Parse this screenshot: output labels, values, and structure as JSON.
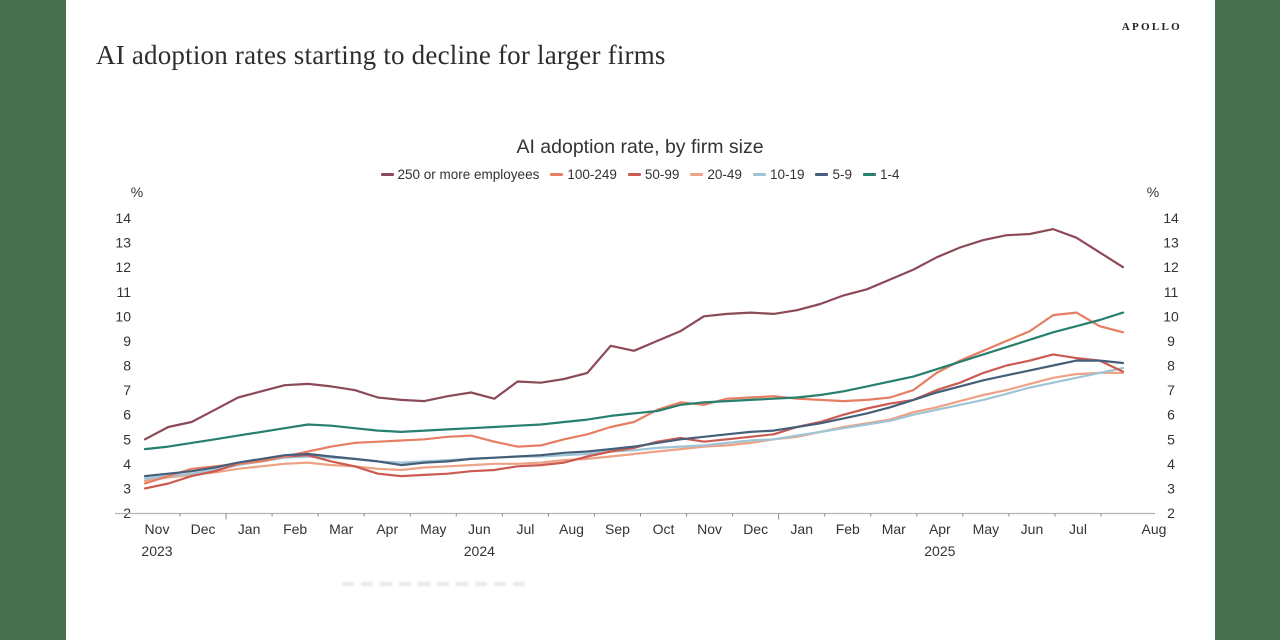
{
  "brand": {
    "logo_text": "APOLLO"
  },
  "page_title": "AI adoption rates starting to decline for larger firms",
  "theme": {
    "sidebar_green": "#48704e",
    "title_color": "#2d2d2d",
    "axis_text_color": "#333333",
    "axis_line_color": "#b3b3b3",
    "tick_color": "#8a8a8a"
  },
  "chart_data": {
    "type": "line",
    "title": "AI adoption rate, by firm size",
    "y_unit_label": "%",
    "ylim": [
      2,
      14
    ],
    "ytick_step": 1,
    "yticks_both_sides": true,
    "grid": false,
    "legend_position": "top",
    "x_start": "Nov 2023",
    "x_end": "Aug 2025",
    "points_per_month": 2,
    "x_months": [
      "Nov",
      "Dec",
      "Jan",
      "Feb",
      "Mar",
      "Apr",
      "May",
      "Jun",
      "Jul",
      "Aug",
      "Sep",
      "Oct",
      "Nov",
      "Dec",
      "Jan",
      "Feb",
      "Mar",
      "Apr",
      "May",
      "Jun",
      "Jul",
      "Aug"
    ],
    "x_years": [
      {
        "label": "2023",
        "month_index": 0
      },
      {
        "label": "2024",
        "month_index": 7
      },
      {
        "label": "2025",
        "month_index": 17
      }
    ],
    "series": [
      {
        "name": "250 or more employees",
        "color": "#8c4a58",
        "values": [
          5.0,
          5.5,
          5.7,
          6.2,
          6.7,
          6.95,
          7.2,
          7.25,
          7.15,
          7.0,
          6.7,
          6.6,
          6.55,
          6.75,
          6.9,
          6.65,
          7.35,
          7.3,
          7.45,
          7.7,
          8.8,
          8.6,
          9.0,
          9.4,
          10.0,
          10.1,
          10.15,
          10.1,
          10.25,
          10.5,
          10.85,
          11.1,
          11.5,
          11.9,
          12.4,
          12.8,
          13.1,
          13.3,
          13.35,
          13.55,
          13.2,
          12.6,
          12.0
        ]
      },
      {
        "name": "100-249",
        "color": "#e77e63",
        "values": [
          3.2,
          3.5,
          3.8,
          3.9,
          4.0,
          4.1,
          4.3,
          4.5,
          4.7,
          4.85,
          4.9,
          4.95,
          5.0,
          5.1,
          5.15,
          4.9,
          4.7,
          4.75,
          5.0,
          5.2,
          5.5,
          5.7,
          6.2,
          6.5,
          6.4,
          6.65,
          6.7,
          6.75,
          6.65,
          6.6,
          6.55,
          6.6,
          6.7,
          7.0,
          7.7,
          8.2,
          8.6,
          9.0,
          9.4,
          10.05,
          10.15,
          9.6,
          9.35
        ]
      },
      {
        "name": "50-99",
        "color": "#cb5b51",
        "values": [
          3.0,
          3.2,
          3.5,
          3.7,
          4.0,
          4.15,
          4.3,
          4.35,
          4.1,
          3.9,
          3.6,
          3.5,
          3.55,
          3.6,
          3.7,
          3.75,
          3.9,
          3.95,
          4.05,
          4.3,
          4.5,
          4.65,
          4.9,
          5.05,
          4.9,
          5.0,
          5.1,
          5.2,
          5.5,
          5.7,
          6.0,
          6.25,
          6.45,
          6.6,
          7.0,
          7.3,
          7.7,
          8.0,
          8.2,
          8.45,
          8.3,
          8.2,
          7.75
        ]
      },
      {
        "name": "20-49",
        "color": "#eda285",
        "values": [
          3.3,
          3.45,
          3.55,
          3.65,
          3.8,
          3.9,
          4.0,
          4.05,
          3.95,
          3.9,
          3.8,
          3.75,
          3.85,
          3.9,
          3.95,
          4.0,
          4.0,
          4.05,
          4.15,
          4.2,
          4.3,
          4.4,
          4.5,
          4.6,
          4.7,
          4.75,
          4.85,
          5.0,
          5.1,
          5.3,
          5.5,
          5.65,
          5.8,
          6.1,
          6.3,
          6.55,
          6.8,
          7.0,
          7.25,
          7.5,
          7.65,
          7.7,
          7.7
        ]
      },
      {
        "name": "10-19",
        "color": "#9fc4d6",
        "values": [
          3.4,
          3.5,
          3.6,
          3.75,
          3.95,
          4.1,
          4.25,
          4.3,
          4.25,
          4.2,
          4.1,
          4.05,
          4.1,
          4.15,
          4.2,
          4.25,
          4.3,
          4.3,
          4.35,
          4.4,
          4.5,
          4.55,
          4.65,
          4.7,
          4.75,
          4.85,
          4.95,
          5.0,
          5.15,
          5.3,
          5.45,
          5.6,
          5.75,
          6.0,
          6.2,
          6.4,
          6.6,
          6.85,
          7.1,
          7.3,
          7.5,
          7.7,
          7.9
        ]
      },
      {
        "name": "5-9",
        "color": "#455f7a",
        "values": [
          3.5,
          3.6,
          3.7,
          3.85,
          4.05,
          4.2,
          4.35,
          4.4,
          4.3,
          4.2,
          4.1,
          3.95,
          4.05,
          4.1,
          4.2,
          4.25,
          4.3,
          4.35,
          4.45,
          4.5,
          4.6,
          4.7,
          4.85,
          5.0,
          5.1,
          5.2,
          5.3,
          5.35,
          5.5,
          5.65,
          5.85,
          6.05,
          6.3,
          6.6,
          6.9,
          7.15,
          7.4,
          7.6,
          7.8,
          8.0,
          8.2,
          8.2,
          8.1
        ]
      },
      {
        "name": "1-4",
        "color": "#277f6d",
        "values": [
          4.6,
          4.7,
          4.85,
          5.0,
          5.15,
          5.3,
          5.45,
          5.6,
          5.55,
          5.45,
          5.35,
          5.3,
          5.35,
          5.4,
          5.45,
          5.5,
          5.55,
          5.6,
          5.7,
          5.8,
          5.95,
          6.05,
          6.15,
          6.4,
          6.5,
          6.55,
          6.6,
          6.65,
          6.7,
          6.8,
          6.95,
          7.15,
          7.35,
          7.55,
          7.85,
          8.15,
          8.45,
          8.75,
          9.05,
          9.35,
          9.6,
          9.85,
          10.15
        ]
      }
    ]
  }
}
